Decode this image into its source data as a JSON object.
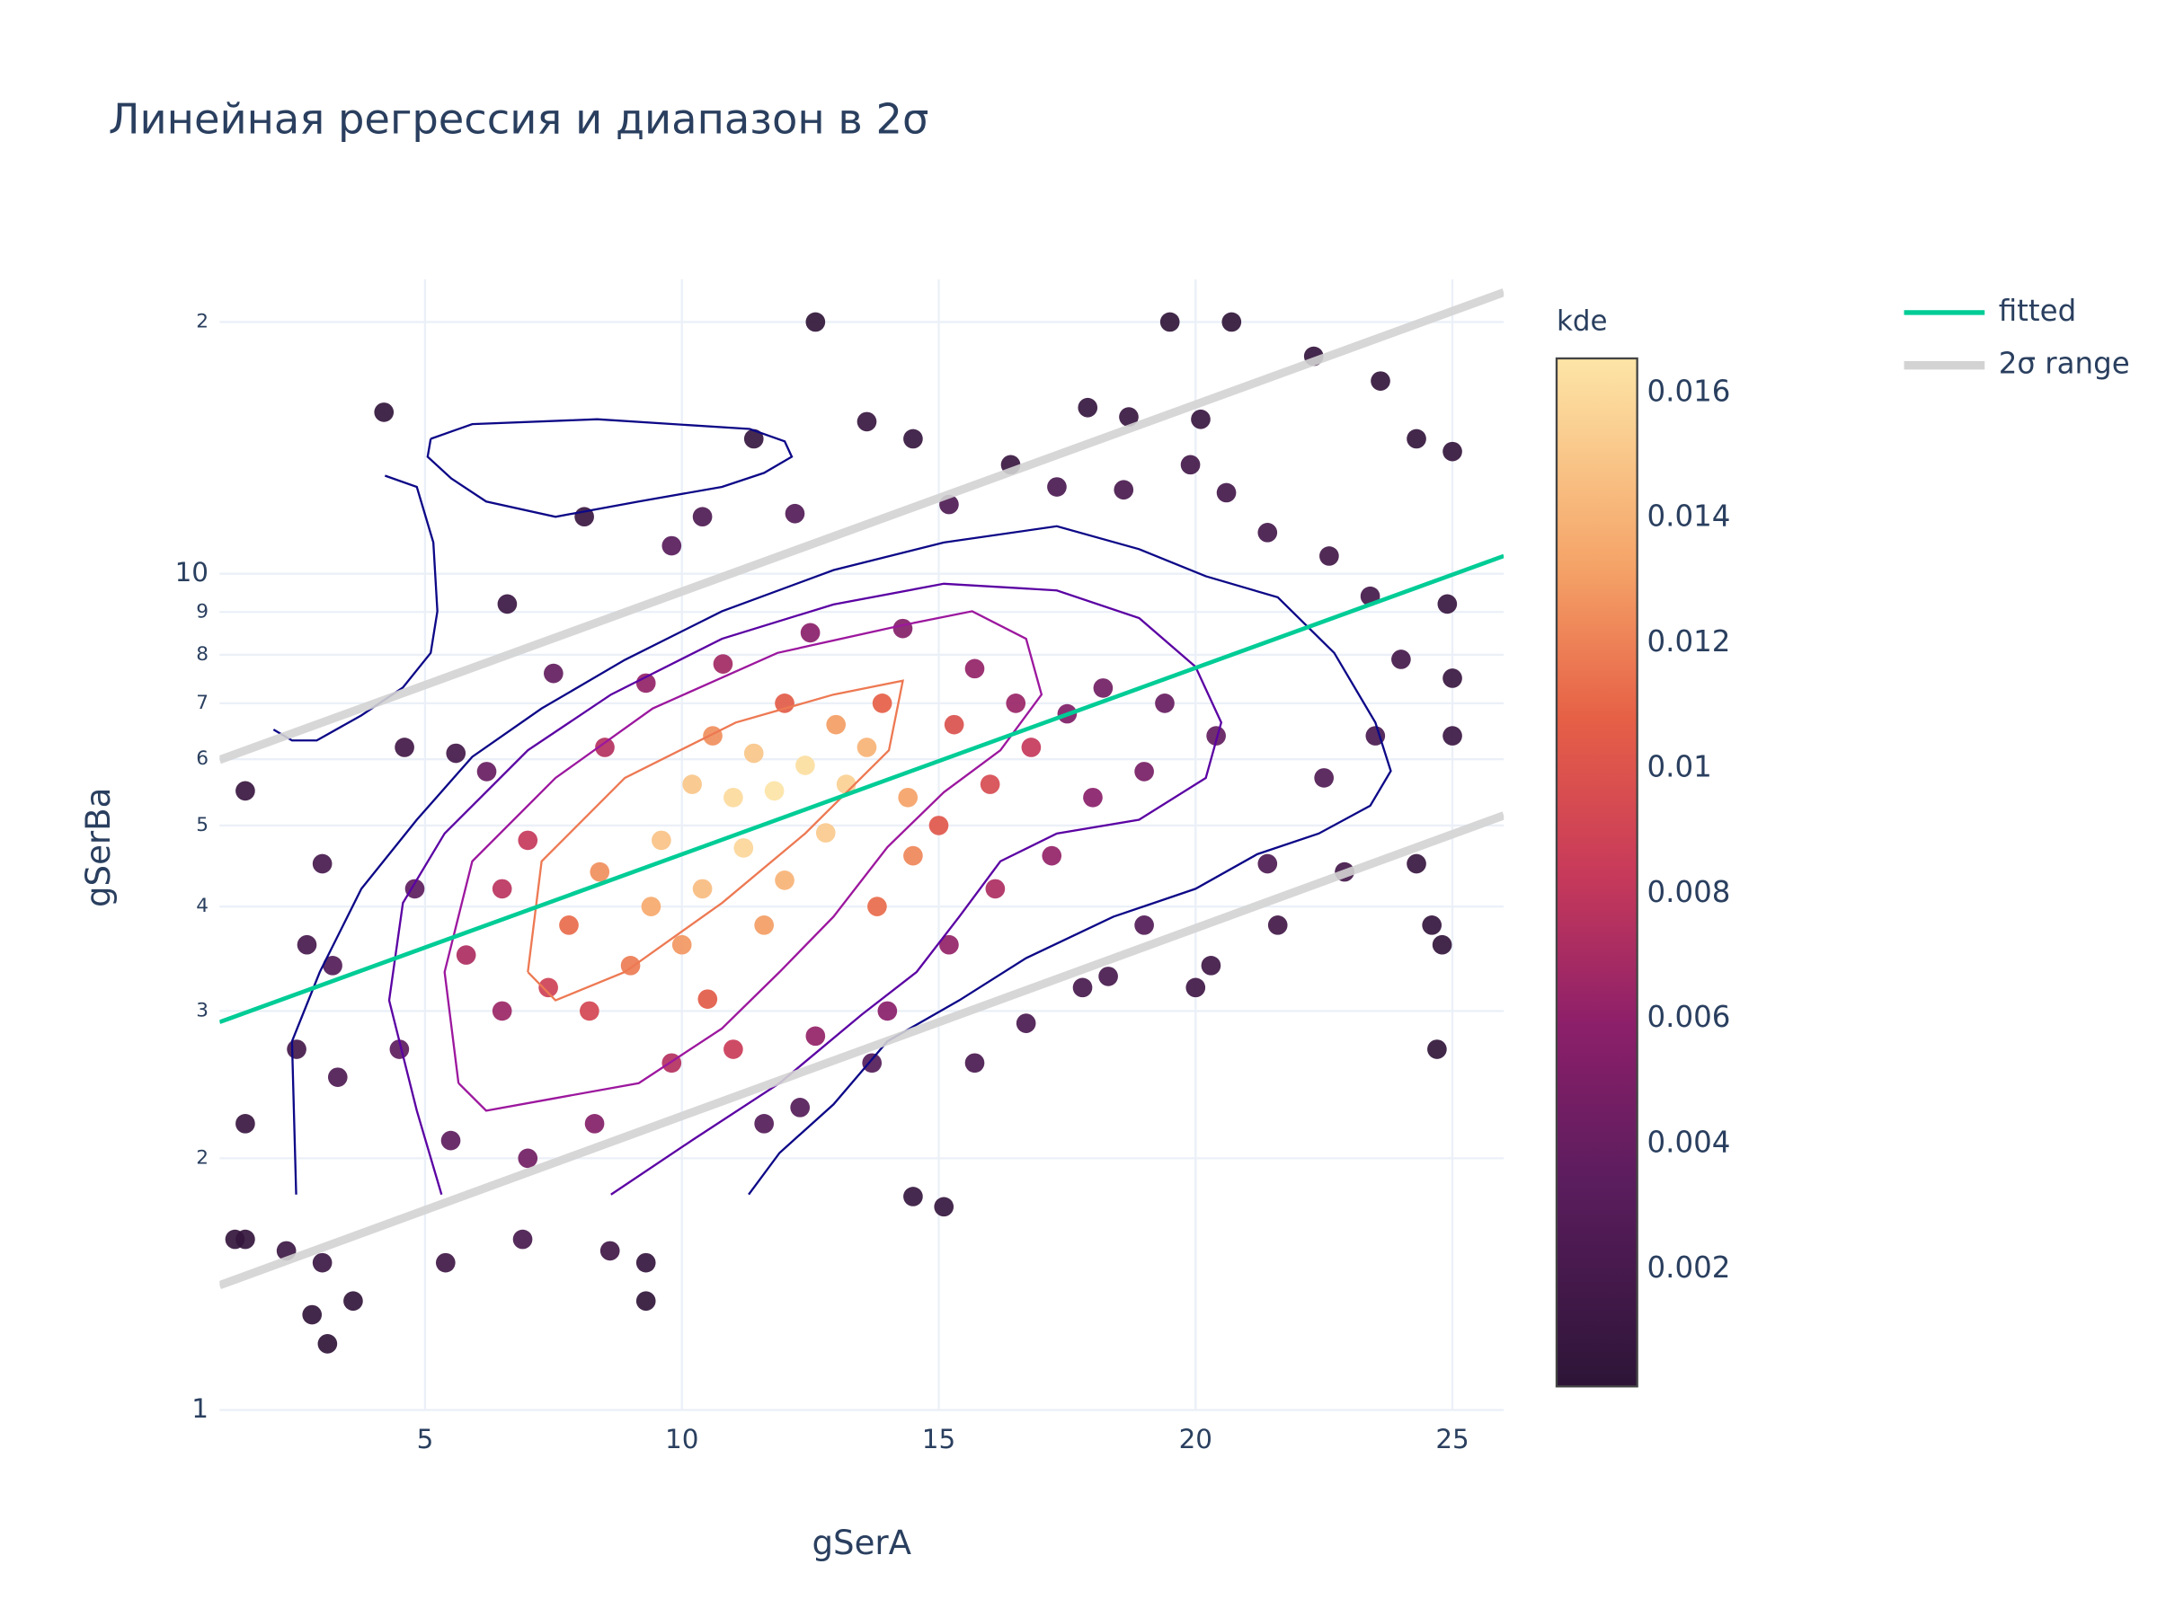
{
  "chart_data": {
    "type": "scatter",
    "title": "Линейная регрессия и диапазон в 2σ",
    "xlabel": "gSerA",
    "ylabel": "gSerBa",
    "xlim": [
      1,
      26
    ],
    "ylim": [
      1,
      22.5
    ],
    "ylog": true,
    "grid": true,
    "legend": "right",
    "xticks": [
      5,
      10,
      15,
      20,
      25
    ],
    "yticks": [
      1,
      2,
      3,
      4,
      5,
      6,
      7,
      8,
      9,
      10,
      {
        "value": 20,
        "label": "2"
      }
    ],
    "points": {
      "x": [
        12.6,
        19.5,
        20.7,
        4.2,
        1.5,
        1.3,
        1.5,
        1.5,
        2.8,
        3.1,
        3.6,
        9.3,
        9.3,
        14.5,
        15.1,
        24.7,
        24.8,
        24.6,
        24.3,
        25,
        25,
        24.9,
        25,
        24.3,
        23.6,
        22.3,
        20.1,
        18.7,
        17.9,
        16.4,
        14.5,
        13.6,
        11.4,
        8.1,
        6.6,
        4.6,
        5.6,
        2.7,
        2.5,
        3.0,
        6.9,
        8.6,
        5.4,
        2.3,
        3,
        22.9,
        21.6,
        20.3,
        20.0,
        17.8,
        18.3,
        16.7,
        15.7,
        11.6,
        12.3,
        13.7,
        19.0,
        21.4,
        22.5,
        23.5,
        24.0,
        23.4,
        22.6,
        21.4,
        20.6,
        19.9,
        18.6,
        17.3,
        15.2,
        10.4,
        9.8,
        12.2,
        7.5,
        6.2,
        4.8,
        3.2,
        3.3,
        4.5,
        5.5,
        7.0,
        8.3,
        9.8,
        6.5,
        5.8,
        6.5,
        7.0,
        7.4,
        8.2,
        8.5,
        9.3,
        10.8,
        12.5,
        14.3,
        15.7,
        16.5,
        17.5,
        18.2,
        19.4,
        20.4,
        19.0,
        18.0,
        17.2,
        16.1,
        15.2,
        14.0,
        12.6,
        11.0,
        10.5,
        9.0,
        7.8,
        8.4,
        13.8,
        15.0,
        16.0,
        16.8,
        15.3,
        13.9,
        12.0,
        10.6,
        9.6,
        10.4,
        11.2,
        11.8,
        12.4,
        13.2,
        12.8,
        11.0,
        10.2,
        13.6,
        14.4,
        12.0,
        9.4,
        10.0,
        11.6,
        14.5,
        13.0,
        11.4
      ],
      "values": [
        20,
        20,
        20,
        15.6,
        5.5,
        1.6,
        1.6,
        2.2,
        1.3,
        1.2,
        1.35,
        1.35,
        1.5,
        1.8,
        1.75,
        2.7,
        3.6,
        3.8,
        4.5,
        6.4,
        7.5,
        9.2,
        14,
        14.5,
        17,
        18.2,
        15.3,
        15.4,
        15.8,
        13.5,
        14.5,
        15.2,
        14.5,
        11.7,
        9.2,
        6.2,
        6.1,
        3.6,
        2.7,
        4.5,
        1.6,
        1.55,
        1.5,
        1.55,
        1.5,
        4.4,
        3.8,
        3.4,
        3.2,
        3.2,
        3.3,
        2.9,
        2.6,
        2.2,
        2.3,
        2.6,
        3.8,
        4.5,
        5.7,
        6.4,
        7.9,
        9.4,
        10.5,
        11.2,
        12.5,
        13.5,
        12.6,
        12.7,
        12.1,
        11.7,
        10.8,
        11.8,
        7.6,
        5.8,
        4.2,
        3.4,
        2.5,
        2.7,
        2.1,
        2.0,
        2.2,
        2.6,
        3.0,
        3.5,
        4.2,
        4.8,
        3.2,
        3.0,
        6.2,
        7.4,
        7.8,
        8.5,
        8.6,
        7.7,
        7.0,
        6.8,
        7.3,
        7.0,
        6.4,
        5.8,
        5.4,
        4.6,
        4.2,
        3.6,
        3.0,
        2.8,
        2.7,
        3.1,
        3.4,
        3.8,
        4.4,
        4.0,
        5.0,
        5.6,
        6.2,
        6.6,
        7.0,
        7.0,
        6.4,
        4.8,
        4.2,
        4.7,
        5.5,
        5.9,
        5.6,
        4.9,
        5.4,
        5.6,
        6.2,
        5.4,
        4.3,
        4.0,
        3.6,
        3.8,
        4.6,
        6.6,
        6.1
      ],
      "color_values": [
        0.0004,
        0.0004,
        0.0004,
        0.0005,
        0.001,
        0.0006,
        0.0006,
        0.001,
        0.0005,
        0.0004,
        0.0005,
        0.0004,
        0.0007,
        0.0008,
        0.0008,
        0.0004,
        0.0006,
        0.0007,
        0.0009,
        0.0011,
        0.0009,
        0.0009,
        0.0006,
        0.0006,
        0.0006,
        0.0007,
        0.0009,
        0.0009,
        0.0008,
        0.001,
        0.0008,
        0.0009,
        0.0008,
        0.001,
        0.0011,
        0.0016,
        0.0017,
        0.002,
        0.0018,
        0.002,
        0.002,
        0.0015,
        0.0015,
        0.0012,
        0.0012,
        0.0017,
        0.0016,
        0.0015,
        0.0015,
        0.002,
        0.002,
        0.0022,
        0.0022,
        0.003,
        0.003,
        0.003,
        0.0028,
        0.0025,
        0.0026,
        0.0022,
        0.0018,
        0.0018,
        0.0016,
        0.0018,
        0.0018,
        0.0017,
        0.0021,
        0.0023,
        0.0025,
        0.0025,
        0.0032,
        0.0028,
        0.0038,
        0.004,
        0.0035,
        0.0028,
        0.0025,
        0.0035,
        0.0035,
        0.0045,
        0.0055,
        0.0075,
        0.0065,
        0.0072,
        0.0078,
        0.0082,
        0.0088,
        0.0092,
        0.0075,
        0.0062,
        0.0068,
        0.0058,
        0.0055,
        0.0062,
        0.0064,
        0.0052,
        0.0045,
        0.004,
        0.0038,
        0.0048,
        0.0058,
        0.0062,
        0.0072,
        0.0062,
        0.0058,
        0.0062,
        0.0085,
        0.0105,
        0.0118,
        0.0112,
        0.0125,
        0.0112,
        0.0102,
        0.0095,
        0.0082,
        0.0098,
        0.0108,
        0.0105,
        0.0125,
        0.0148,
        0.0145,
        0.0158,
        0.0165,
        0.0162,
        0.0155,
        0.0152,
        0.016,
        0.015,
        0.014,
        0.0132,
        0.014,
        0.0135,
        0.0128,
        0.013,
        0.0122,
        0.013,
        0.015
      ],
      "colorscale": [
        [
          0,
          "#2d1537"
        ],
        [
          0.2,
          "#5b1d5e"
        ],
        [
          0.35,
          "#8c1f6a"
        ],
        [
          0.5,
          "#c83a5a"
        ],
        [
          0.65,
          "#e66046"
        ],
        [
          0.8,
          "#f5a468"
        ],
        [
          1,
          "#fde5a7"
        ]
      ],
      "cmin": 0.00013,
      "cmax": 0.01655,
      "colorbar_title": "kde",
      "colorbar_ticks": [
        0.002,
        0.004,
        0.006,
        0.008,
        0.01,
        0.012,
        0.014,
        0.016
      ]
    },
    "contours": [
      {
        "color": "#0d0887",
        "x": [
          2.49,
          2.41,
          2.95,
          3.76,
          4.84,
          5.92,
          7.27,
          8.89,
          10.78,
          12.95,
          15.1,
          17.3,
          18.9,
          20.2,
          21.6,
          22.7,
          23.5,
          23.8,
          23.4,
          22.4,
          21.2,
          20.0,
          18.4,
          16.7,
          15.4,
          14.0,
          12.95,
          11.9,
          11.3
        ],
        "values": [
          1.81,
          2.76,
          3.34,
          4.2,
          5.08,
          6.04,
          6.9,
          7.89,
          9.02,
          10.1,
          10.9,
          11.4,
          10.7,
          9.93,
          9.37,
          8.04,
          6.64,
          5.81,
          5.28,
          4.89,
          4.62,
          4.2,
          3.89,
          3.47,
          3.09,
          2.76,
          2.32,
          2.03,
          1.81
        ]
      },
      {
        "color": "#0d0887",
        "x": [
          5.11,
          5.92,
          8.35,
          11.32,
          12.0,
          12.14,
          11.6,
          10.78,
          9.16,
          7.54,
          6.19,
          5.51,
          5.05,
          5.11
        ],
        "values": [
          14.5,
          15.1,
          15.3,
          14.9,
          14.4,
          13.8,
          13.2,
          12.7,
          12.2,
          11.7,
          12.2,
          13.0,
          13.8,
          14.5
        ]
      },
      {
        "color": "#0d0887",
        "x": [
          4.22,
          4.84,
          5.16,
          5.24,
          5.11,
          4.57,
          3.76,
          2.89,
          2.41,
          2.05
        ],
        "values": [
          13.1,
          12.7,
          10.9,
          9.02,
          8.04,
          7.31,
          6.77,
          6.32,
          6.32,
          6.51
        ]
      },
      {
        "color": "#5b02a3",
        "x": [
          5.32,
          4.84,
          4.3,
          4.57,
          5.38,
          7.0,
          8.62,
          10.78,
          12.95,
          15.1,
          17.3,
          18.9,
          20.0,
          20.5,
          20.2,
          18.9,
          17.3,
          16.2,
          15.4,
          14.57,
          13.5,
          11.9,
          10.24,
          8.62
        ],
        "values": [
          1.81,
          2.28,
          3.09,
          4.04,
          4.89,
          6.15,
          7.17,
          8.36,
          9.19,
          9.73,
          9.55,
          8.85,
          7.74,
          6.64,
          5.7,
          5.08,
          4.89,
          4.53,
          3.89,
          3.34,
          2.97,
          2.46,
          2.11,
          1.81
        ]
      },
      {
        "color": "#9c179e",
        "x": [
          5.65,
          5.38,
          5.92,
          7.54,
          9.43,
          11.86,
          14.3,
          15.65,
          16.7,
          17.0,
          16.2,
          15.1,
          14.0,
          12.95,
          11.9,
          10.78,
          9.16,
          7.54,
          6.19,
          5.65
        ],
        "values": [
          2.46,
          3.34,
          4.53,
          5.7,
          6.9,
          8.04,
          8.68,
          9.02,
          8.36,
          7.17,
          6.15,
          5.48,
          4.71,
          3.89,
          3.34,
          2.86,
          2.46,
          2.36,
          2.28,
          2.46
        ]
      },
      {
        "color": "#ed7953",
        "x": [
          7.0,
          7.27,
          8.89,
          11.05,
          12.95,
          14.3,
          14.03,
          12.4,
          10.78,
          8.89,
          7.54,
          7.0
        ],
        "values": [
          3.34,
          4.53,
          5.7,
          6.64,
          7.17,
          7.45,
          6.15,
          4.89,
          4.04,
          3.34,
          3.09,
          3.34
        ]
      }
    ],
    "lines": [
      {
        "name": "fitted",
        "color": "#00cc96",
        "x": [
          1,
          26
        ],
        "values": [
          2.91,
          10.5
        ]
      },
      {
        "name": "2σ range",
        "color": "#d3d3d3",
        "x": [
          1,
          26
        ],
        "upper": [
          5.99,
          21.7
        ],
        "lower": [
          1.41,
          5.14
        ]
      }
    ]
  }
}
